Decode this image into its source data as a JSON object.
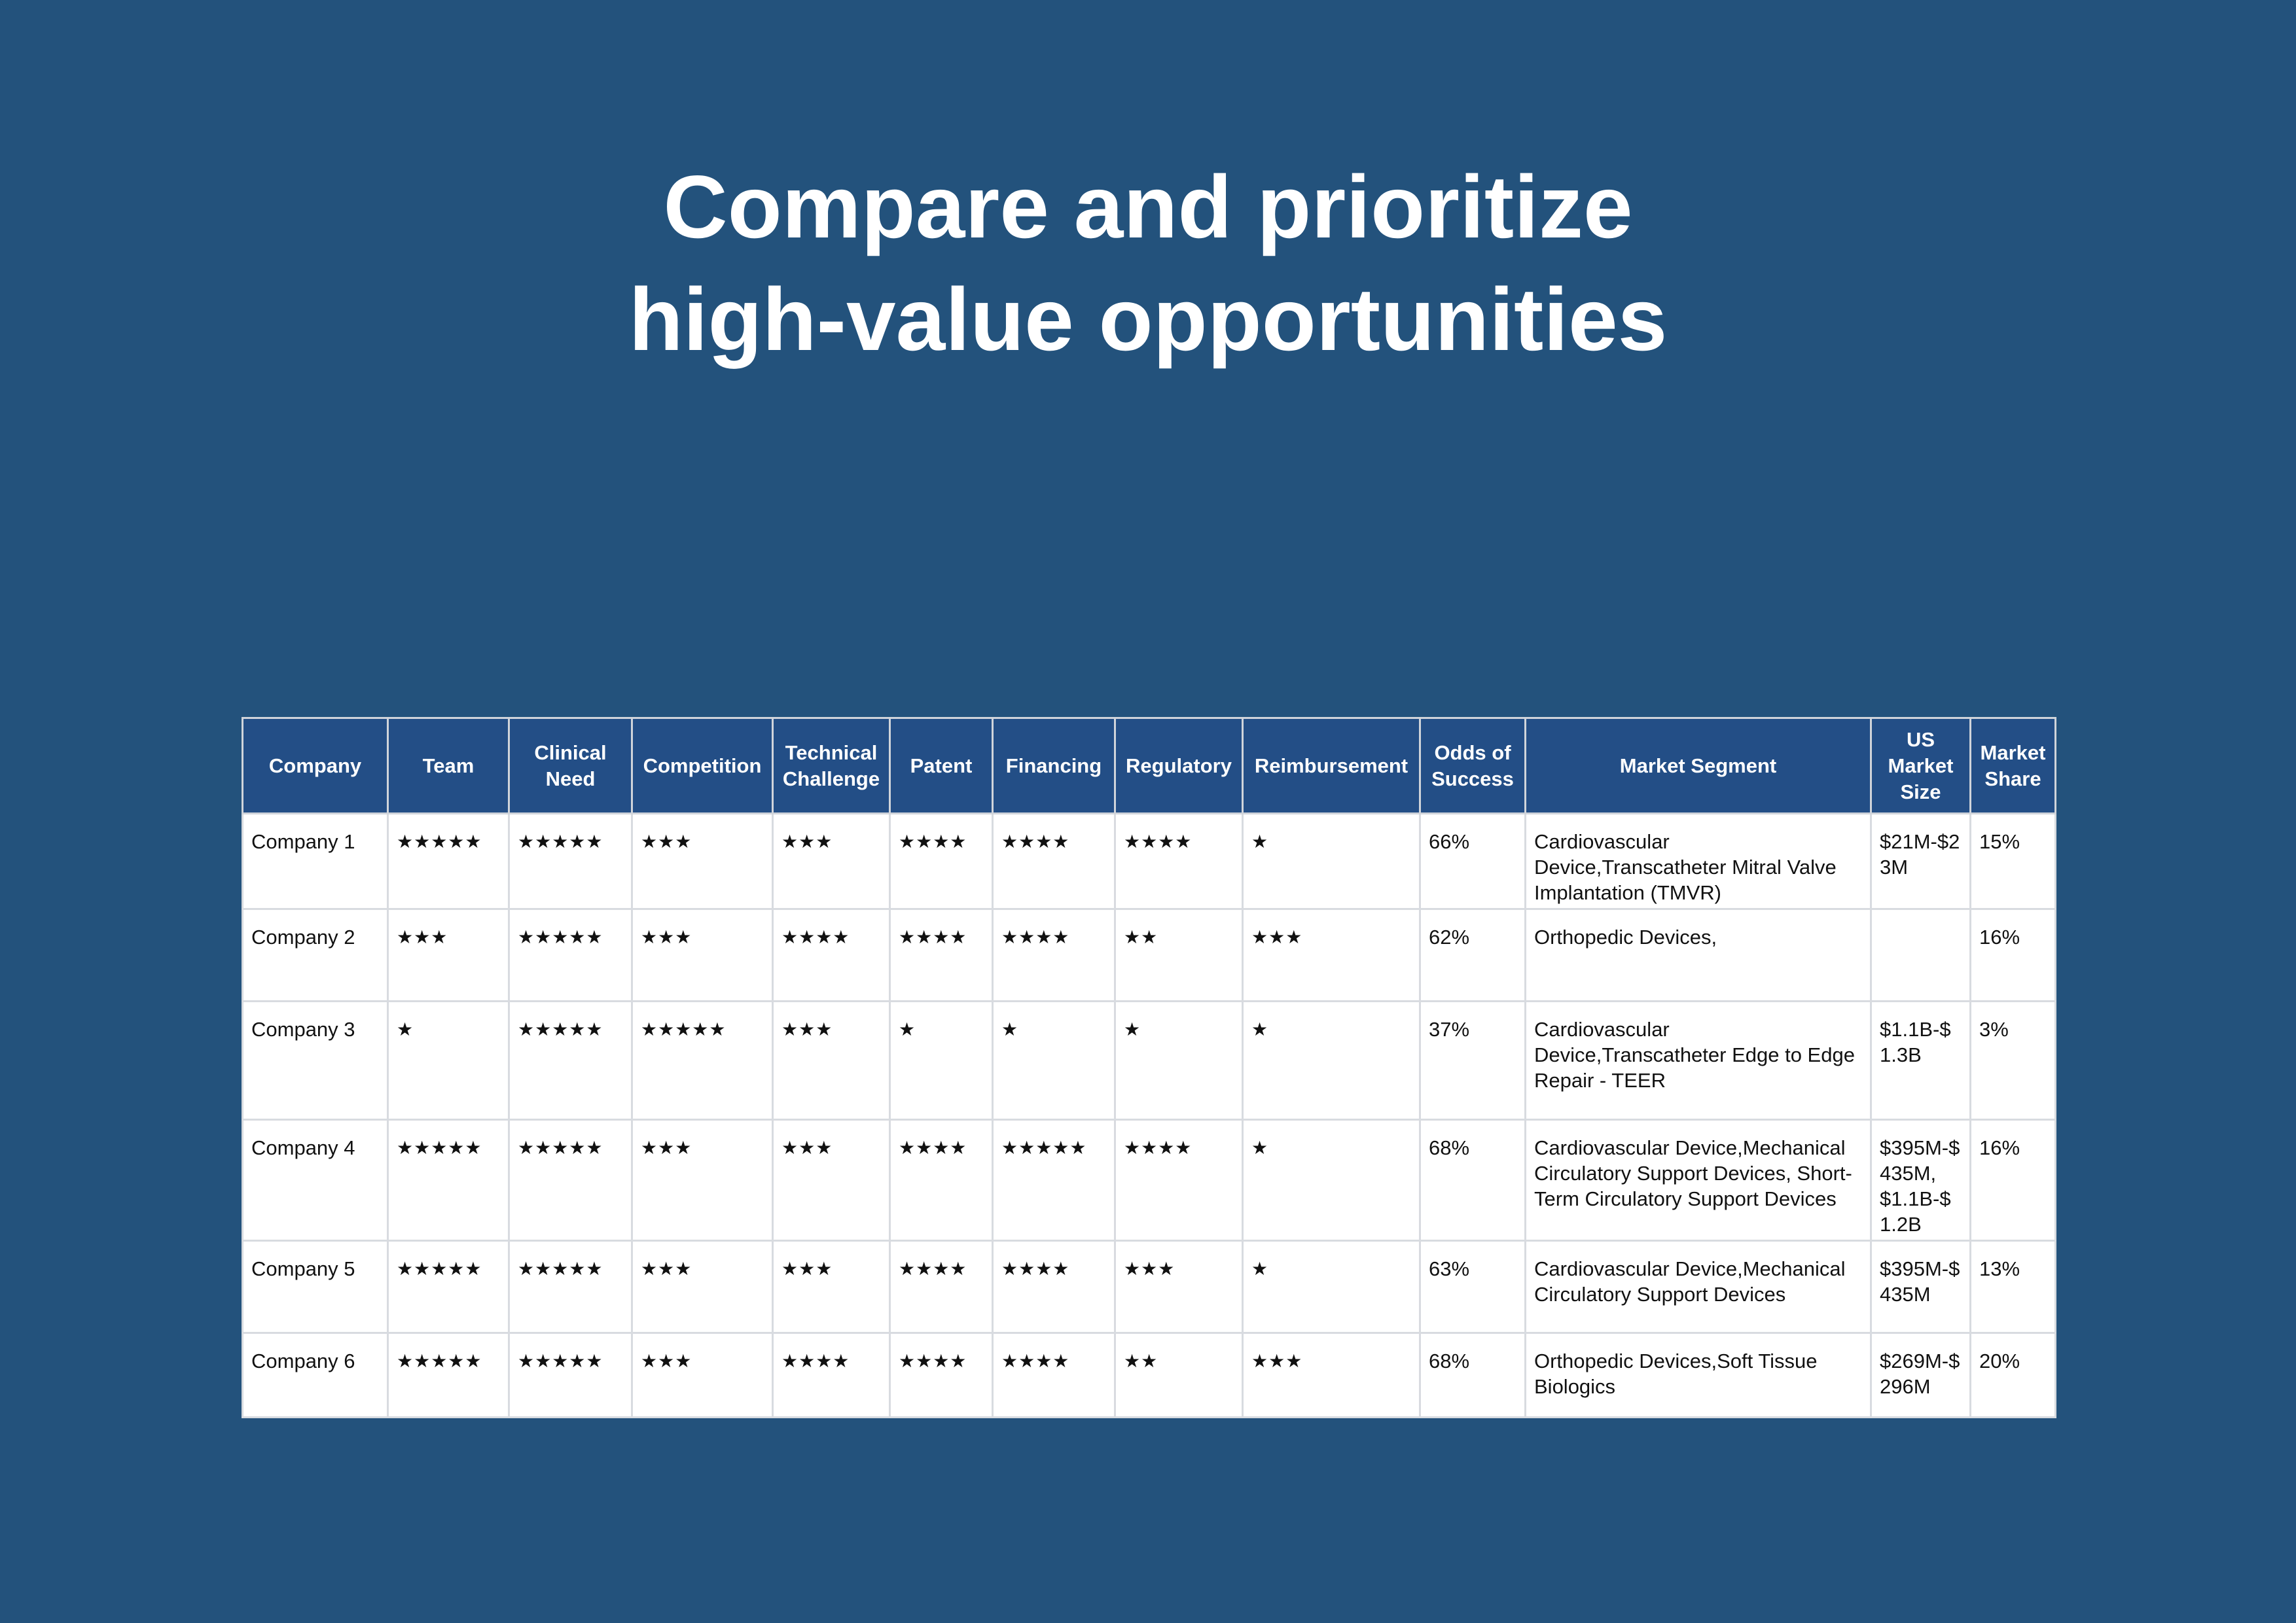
{
  "header": {
    "title": [
      "Compare and prioritize",
      "high-value opportunities"
    ]
  },
  "table": {
    "columns": [
      "Company",
      "Team",
      "Clinical Need",
      "Competition",
      "Technical Challenge",
      "Patent",
      "Financing",
      "Regulatory",
      "Reimbursement",
      "Odds of Success",
      "Market Segment",
      "US Market Size",
      "Market Share"
    ],
    "rows": [
      [
        "Company 1",
        "★★★★★",
        "★★★★★",
        "★★★",
        "★★★",
        "★★★★",
        "★★★★",
        "★★★★",
        "★",
        "66%",
        "Cardiovascular Device,Transcatheter Mitral Valve Implantation (TMVR)",
        "$21M-$23M",
        "15%"
      ],
      [
        "Company 2",
        "★★★",
        "★★★★★",
        "★★★",
        "★★★★",
        "★★★★",
        "★★★★",
        "★★",
        "★★★",
        "62%",
        "Orthopedic Devices,",
        null,
        "16%"
      ],
      [
        "Company 3",
        "★",
        "★★★★★",
        "★★★★★",
        "★★★",
        "★",
        "★",
        "★",
        "★",
        "37%",
        "Cardiovascular Device,Transcatheter Edge to Edge Repair - TEER",
        "$1.1B-$1.3B",
        "3%"
      ],
      [
        "Company 4",
        "★★★★★",
        "★★★★★",
        "★★★",
        "★★★",
        "★★★★",
        "★★★★★",
        "★★★★",
        "★",
        "68%",
        "Cardiovascular Device,Mechanical Circulatory Support Devices, Short-Term Circulatory Support Devices",
        "$395M-$435M, $1.1B-$1.2B",
        "16%"
      ],
      [
        "Company 5",
        "★★★★★",
        "★★★★★",
        "★★★",
        "★★★",
        "★★★★",
        "★★★★",
        "★★★",
        "★",
        "63%",
        "Cardiovascular Device,Mechanical Circulatory Support Devices",
        "$395M-$435M",
        "13%"
      ],
      [
        "Company 6",
        "★★★★★",
        "★★★★★",
        "★★★",
        "★★★★",
        "★★★★",
        "★★★★",
        "★★",
        "★★★",
        "68%",
        "Orthopedic Devices,Soft Tissue Biologics",
        "$269M-$296M",
        "20%"
      ]
    ]
  }
}
